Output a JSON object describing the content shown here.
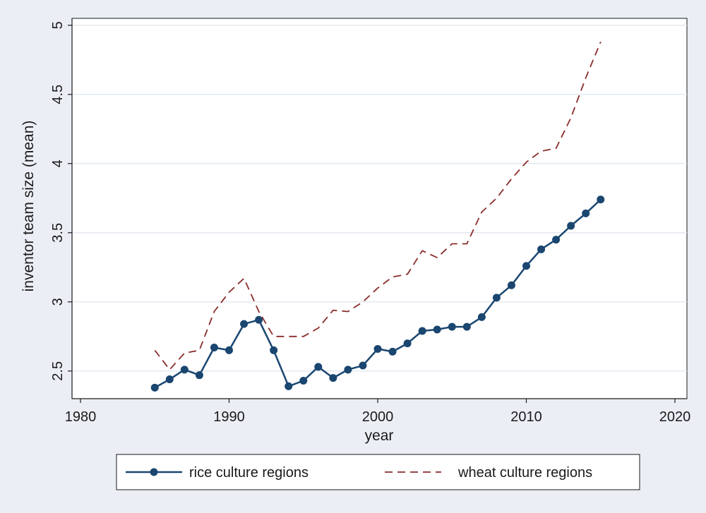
{
  "chart_data": {
    "type": "line",
    "xlabel": "year",
    "ylabel": "inventor team size (mean)",
    "xlim": [
      1980,
      2020
    ],
    "ylim": [
      2.3,
      5.05
    ],
    "xticks": [
      1980,
      1990,
      2000,
      2010,
      2020
    ],
    "yticks": [
      2.5,
      3,
      3.5,
      4,
      4.5,
      5
    ],
    "grid": true,
    "legend_position": "bottom",
    "series": [
      {
        "name": "rice culture regions",
        "color": "#1a4670",
        "style": "solid-with-markers",
        "x": [
          1985,
          1986,
          1987,
          1988,
          1989,
          1990,
          1991,
          1992,
          1993,
          1994,
          1995,
          1996,
          1997,
          1998,
          1999,
          2000,
          2001,
          2002,
          2003,
          2004,
          2005,
          2006,
          2007,
          2008,
          2009,
          2010,
          2011,
          2012,
          2013,
          2014,
          2015
        ],
        "values": [
          2.38,
          2.44,
          2.51,
          2.47,
          2.67,
          2.65,
          2.84,
          2.87,
          2.65,
          2.39,
          2.43,
          2.53,
          2.45,
          2.51,
          2.54,
          2.66,
          2.64,
          2.7,
          2.79,
          2.8,
          2.82,
          2.82,
          2.89,
          3.03,
          3.12,
          3.26,
          3.38,
          3.45,
          3.55,
          3.64,
          3.74
        ]
      },
      {
        "name": "wheat culture regions",
        "color": "#8b2c2c",
        "style": "dashed",
        "x": [
          1985,
          1986,
          1987,
          1988,
          1989,
          1990,
          1991,
          1992,
          1993,
          1994,
          1995,
          1996,
          1997,
          1998,
          1999,
          2000,
          2001,
          2002,
          2003,
          2004,
          2005,
          2006,
          2007,
          2008,
          2009,
          2010,
          2011,
          2012,
          2013,
          2014,
          2015
        ],
        "values": [
          2.65,
          2.51,
          2.63,
          2.65,
          2.93,
          3.07,
          3.17,
          2.93,
          2.75,
          2.75,
          2.75,
          2.81,
          2.94,
          2.93,
          3.0,
          3.1,
          3.18,
          3.2,
          3.37,
          3.32,
          3.42,
          3.42,
          3.65,
          3.75,
          3.89,
          4.01,
          4.09,
          4.11,
          4.33,
          4.62,
          4.88
        ]
      }
    ]
  }
}
